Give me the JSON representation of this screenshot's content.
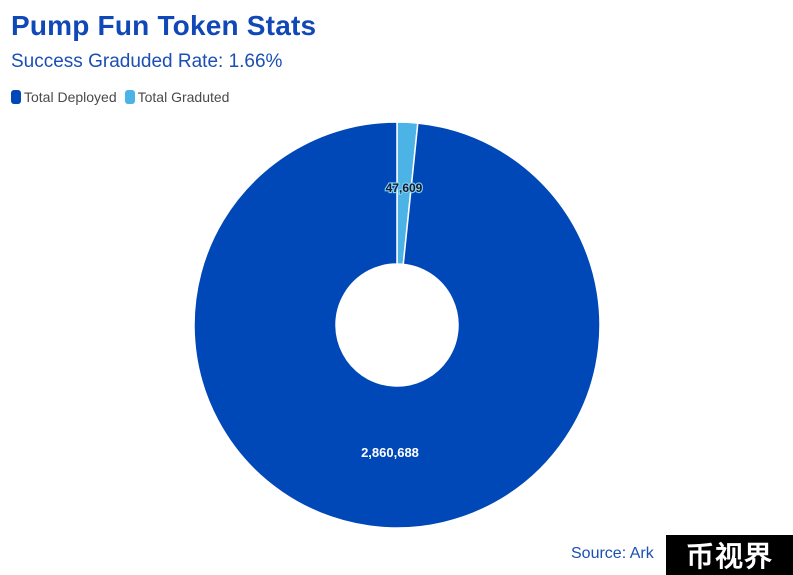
{
  "title": "Pump Fun Token Stats",
  "subtitle": "Success Graduded Rate: 1.66%",
  "legend": [
    {
      "label": "Total Deployed",
      "color": "#0047b8"
    },
    {
      "label": "Total Graduted",
      "color": "#4bb3e6"
    }
  ],
  "source": "Source: Ark",
  "watermark": "币视界",
  "chart_data": {
    "type": "pie",
    "subtype": "donut",
    "title": "Pump Fun Token Stats",
    "subtitle": "Success Graduded Rate: 1.66%",
    "series": [
      {
        "name": "Total Deployed",
        "value": 2860688,
        "label": "2,860,688",
        "color": "#0047b8"
      },
      {
        "name": "Total Graduted",
        "value": 47609,
        "label": "47,609",
        "color": "#4bb3e6"
      }
    ],
    "legend_position": "top-left",
    "data_labels": true
  }
}
